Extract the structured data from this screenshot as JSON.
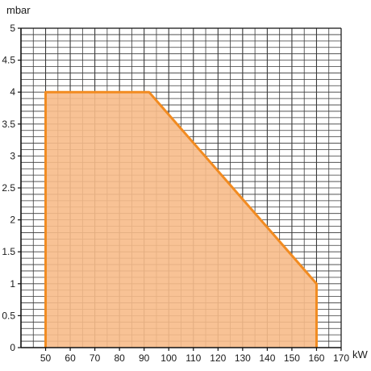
{
  "chart_data": {
    "type": "area",
    "xlabel": "kW",
    "ylabel": "mbar",
    "xlim": [
      40,
      170
    ],
    "ylim": [
      0,
      5
    ],
    "x_ticks": [
      50,
      60,
      70,
      80,
      90,
      100,
      110,
      120,
      130,
      140,
      150,
      160,
      170
    ],
    "y_ticks": [
      0,
      0.5,
      1,
      1.5,
      2,
      2.5,
      3,
      3.5,
      4,
      4.5,
      5
    ],
    "grid": true,
    "series": [
      {
        "points": [
          {
            "x": 50,
            "y": 0
          },
          {
            "x": 50,
            "y": 4
          },
          {
            "x": 92,
            "y": 4
          },
          {
            "x": 160,
            "y": 1
          },
          {
            "x": 160,
            "y": 0
          }
        ]
      }
    ],
    "colors": {
      "fill": "#f7bb8a",
      "outline": "#f28b20",
      "grid": "#3a3a3a",
      "axis": "#111111"
    }
  }
}
